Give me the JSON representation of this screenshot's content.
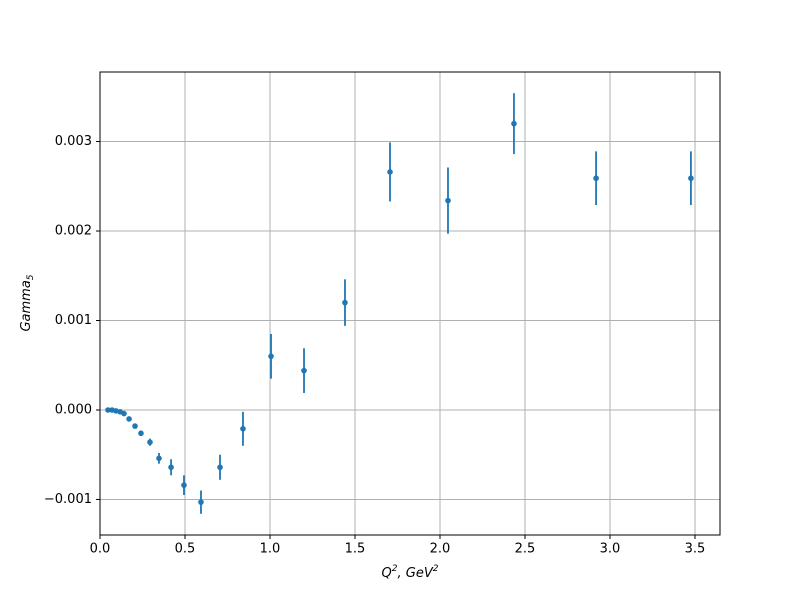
{
  "chart_data": {
    "type": "errorbar",
    "xlabel": [
      "Q",
      "2",
      ", GeV",
      "2"
    ],
    "ylabel": [
      "Gamma",
      "5"
    ],
    "xlim": [
      0,
      3.647
    ],
    "ylim": [
      -0.001397,
      0.003777
    ],
    "xticks": [
      {
        "value": 0,
        "label": "0.0"
      },
      0.5,
      {
        "value": 1,
        "label": "1.0"
      },
      1.5,
      {
        "value": 2,
        "label": "2.0"
      },
      2.5,
      {
        "value": 3,
        "label": "3.0"
      },
      3.5
    ],
    "yticks": [
      {
        "value": -0.001,
        "label": "−0.001"
      },
      {
        "value": 0,
        "label": "0.000"
      },
      0.001,
      0.002,
      0.003
    ],
    "grid": true,
    "series": [
      {
        "color": "#1f77b4",
        "x": [
          0.047,
          0.071,
          0.094,
          0.118,
          0.141,
          0.171,
          0.206,
          0.241,
          0.294,
          0.347,
          0.418,
          0.494,
          0.594,
          0.706,
          0.841,
          1.006,
          1.2,
          1.441,
          1.706,
          2.047,
          2.435,
          2.918,
          3.476
        ],
        "values": [
          0,
          0,
          -1e-05,
          -2e-05,
          -4e-05,
          -0.0001,
          -0.00018,
          -0.00026,
          -0.00036,
          -0.00054,
          -0.00064,
          -0.00084,
          -0.00103,
          -0.00064,
          -0.00021,
          0.0006,
          0.00044,
          0.0012,
          0.00266,
          0.00234,
          0.0032,
          0.00259,
          0.00259
        ],
        "errors": [
          1e-05,
          1e-05,
          1e-05,
          1e-05,
          1e-05,
          2e-05,
          2e-05,
          3e-05,
          4e-05,
          6e-05,
          9e-05,
          0.00011,
          0.00013,
          0.00014,
          0.00019,
          0.00025,
          0.00025,
          0.00026,
          0.00033,
          0.00037,
          0.00034,
          0.0003,
          0.0003
        ]
      }
    ]
  }
}
